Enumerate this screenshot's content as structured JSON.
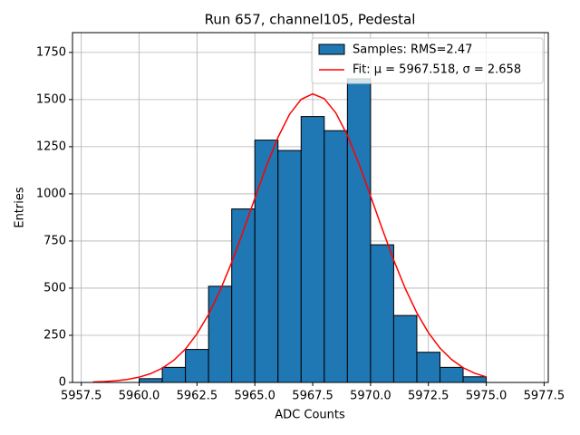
{
  "chart_data": {
    "type": "histogram",
    "title": "Run 657, channel105, Pedestal",
    "xlabel": "ADC Counts",
    "ylabel": "Entries",
    "name": "Samples: RMS=2.47",
    "color": "#1f77b4",
    "edgecolor": "#000000",
    "bins": [
      5960,
      5961,
      5962,
      5963,
      5964,
      5965,
      5966,
      5967,
      5968,
      5969,
      5970,
      5971,
      5972,
      5973,
      5974,
      5975
    ],
    "values": [
      20,
      80,
      175,
      510,
      920,
      1285,
      1230,
      1410,
      1335,
      1610,
      730,
      355,
      160,
      80,
      30
    ],
    "fit": {
      "name": "Fit: μ = 5967.518, σ = 2.658",
      "color": "#ff0000",
      "x": [
        5958,
        5958.5,
        5959,
        5959.5,
        5960,
        5960.5,
        5961,
        5961.5,
        5962,
        5962.5,
        5963,
        5963.5,
        5964,
        5964.5,
        5965,
        5965.5,
        5966,
        5966.5,
        5967,
        5967.5,
        5968,
        5968.5,
        5969,
        5969.5,
        5970,
        5970.5,
        5971,
        5971.5,
        5972,
        5972.5,
        5973,
        5973.5,
        5974,
        5974.5,
        5975
      ],
      "values": [
        2.5,
        4.8,
        9,
        16.2,
        28,
        46.8,
        75.6,
        118,
        177,
        258,
        361,
        488,
        637,
        803,
        977,
        1147,
        1300,
        1422,
        1501,
        1530,
        1505,
        1429,
        1310,
        1159,
        989,
        816,
        649,
        498,
        369,
        264,
        182,
        122,
        78,
        49,
        29
      ]
    },
    "xlim": [
      5957.12,
      5977.68
    ],
    "xticks": [
      5957.5,
      {
        "value": 5960,
        "label": "5960.0"
      },
      5962.5,
      {
        "value": 5965,
        "label": "5965.0"
      },
      5967.5,
      {
        "value": 5970,
        "label": "5970.0"
      },
      5972.5,
      {
        "value": 5975,
        "label": "5975.0"
      },
      5977.5
    ],
    "ylim": [
      0,
      1855
    ],
    "yticks": [
      0,
      250,
      500,
      750,
      1000,
      1250,
      1500,
      1750
    ],
    "grid": true,
    "legend": "upper right"
  }
}
